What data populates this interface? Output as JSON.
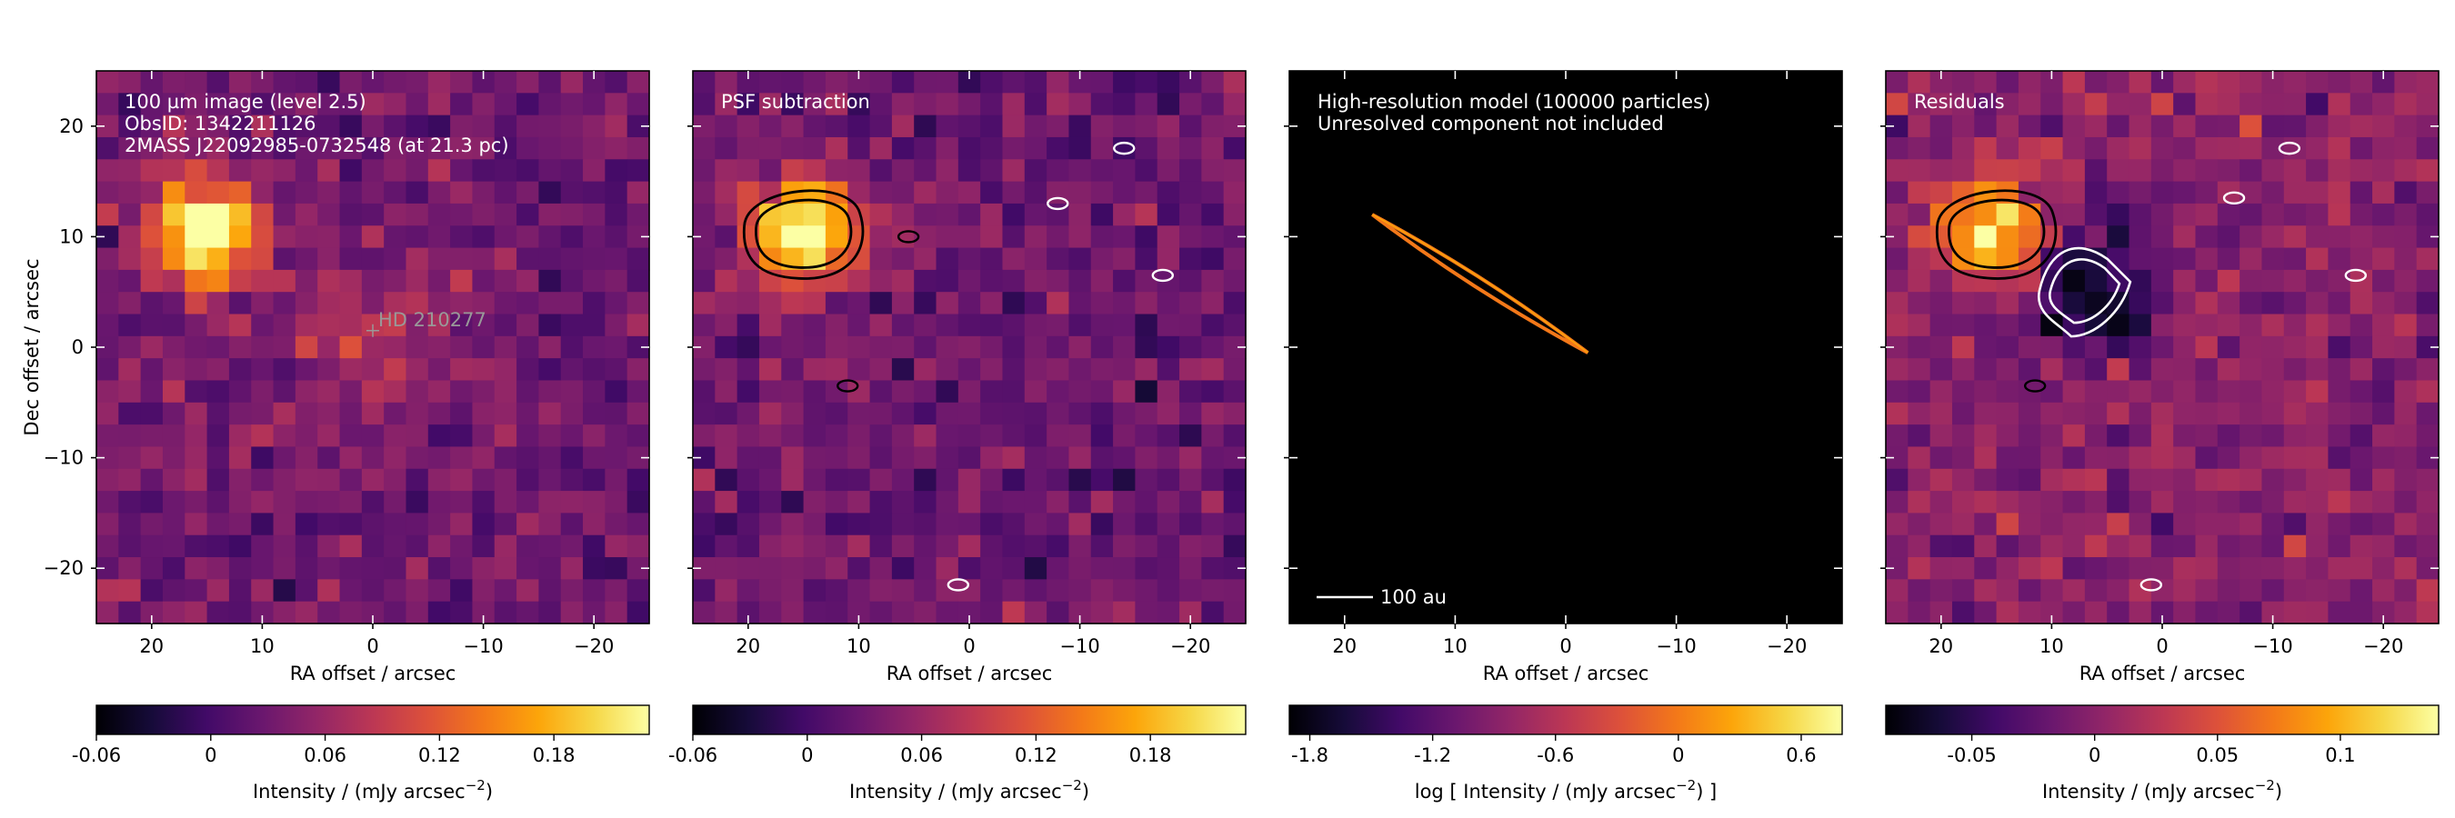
{
  "chart_data": [
    {
      "type": "heatmap",
      "panel": "observation",
      "annotations": [
        "100 µm image (level 2.5)",
        "ObsID: 1342211126",
        "2MASS J22092985-0732548 (at 21.3 pc)"
      ],
      "marker_label": "HD 210277",
      "marker_position": {
        "ra_offset_arcsec": 0,
        "dec_offset_arcsec": 1.5
      },
      "xlabel": "RA offset / arcsec",
      "ylabel": "Dec offset / arcsec",
      "xlim": [
        25,
        -25
      ],
      "ylim": [
        -25,
        25
      ],
      "xticks": [
        20,
        10,
        0,
        -10,
        -20
      ],
      "xtick_labels": [
        "20",
        "10",
        "0",
        "−10",
        "−20"
      ],
      "yticks": [
        20,
        10,
        0,
        -10,
        -20
      ],
      "ytick_labels": [
        "20",
        "10",
        "0",
        "−10",
        "−20"
      ],
      "colormap": "inferno",
      "sources": [
        {
          "ra_offset_arcsec": 15,
          "dec_offset_arcsec": 10.5,
          "peak_intensity": 0.23
        },
        {
          "ra_offset_arcsec": 0.5,
          "dec_offset_arcsec": 1,
          "peak_intensity": 0.055
        }
      ],
      "colorbar": {
        "label_main": "Intensity / (mJy arcsec",
        "label_exp": "−2",
        "label_end": ")",
        "range": [
          -0.06,
          0.23
        ],
        "ticks": [
          -0.06,
          0,
          0.06,
          0.12,
          0.18
        ],
        "tick_labels": [
          "-0.06",
          "0",
          "0.06",
          "0.12",
          "0.18"
        ]
      }
    },
    {
      "type": "heatmap",
      "panel": "psf_subtraction",
      "annotations": [
        "PSF subtraction"
      ],
      "xlabel": "RA offset / arcsec",
      "xlim": [
        25,
        -25
      ],
      "ylim": [
        -25,
        25
      ],
      "xticks": [
        20,
        10,
        0,
        -10,
        -20
      ],
      "xtick_labels": [
        "20",
        "10",
        "0",
        "−10",
        "−20"
      ],
      "colormap": "inferno",
      "contour_colors": {
        "positive": "#000000",
        "negative": "#ffffff"
      },
      "sources": [
        {
          "ra_offset_arcsec": 15,
          "dec_offset_arcsec": 10.5,
          "peak_intensity": 0.23
        }
      ],
      "colorbar": {
        "label_main": "Intensity / (mJy arcsec",
        "label_exp": "−2",
        "label_end": ")",
        "range": [
          -0.06,
          0.23
        ],
        "ticks": [
          -0.06,
          0,
          0.06,
          0.12,
          0.18
        ],
        "tick_labels": [
          "-0.06",
          "0",
          "0.06",
          "0.12",
          "0.18"
        ]
      }
    },
    {
      "type": "heatmap",
      "panel": "model",
      "annotations": [
        "High-resolution model (100000 particles)",
        "Unresolved component not included"
      ],
      "scalebar_label": "100 au",
      "xlabel": "RA offset / arcsec",
      "xlim": [
        25,
        -25
      ],
      "ylim": [
        -25,
        25
      ],
      "xticks": [
        20,
        10,
        0,
        -10,
        -20
      ],
      "xtick_labels": [
        "20",
        "10",
        "0",
        "−10",
        "−20"
      ],
      "colormap": "inferno",
      "disk": {
        "from": {
          "ra": 17.5,
          "dec": 12
        },
        "to": {
          "ra": -2,
          "dec": -0.5
        }
      },
      "colorbar": {
        "label_main": "log [ Intensity / (mJy arcsec",
        "label_exp": "−2",
        "label_end": ") ]",
        "range": [
          -1.9,
          0.8
        ],
        "ticks": [
          -1.8,
          -1.2,
          -0.6,
          0,
          0.6
        ],
        "tick_labels": [
          "-1.8",
          "-1.2",
          "-0.6",
          "0",
          "0.6"
        ]
      }
    },
    {
      "type": "heatmap",
      "panel": "residuals",
      "annotations": [
        "Residuals"
      ],
      "xlabel": "RA offset / arcsec",
      "xlim": [
        25,
        -25
      ],
      "ylim": [
        -25,
        25
      ],
      "xticks": [
        20,
        10,
        0,
        -10,
        -20
      ],
      "xtick_labels": [
        "20",
        "10",
        "0",
        "−10",
        "−20"
      ],
      "colormap": "inferno",
      "sources": [
        {
          "ra_offset_arcsec": 15,
          "dec_offset_arcsec": 10.5,
          "peak_intensity": 0.14
        },
        {
          "ra_offset_arcsec": 7,
          "dec_offset_arcsec": 5.5,
          "peak_intensity": -0.08
        }
      ],
      "colorbar": {
        "label_main": "Intensity / (mJy arcsec",
        "label_exp": "−2",
        "label_end": ")",
        "range": [
          -0.085,
          0.14
        ],
        "ticks": [
          -0.05,
          0,
          0.05,
          0.1
        ],
        "tick_labels": [
          "-0.05",
          "0",
          "0.05",
          "0.1"
        ]
      }
    }
  ]
}
